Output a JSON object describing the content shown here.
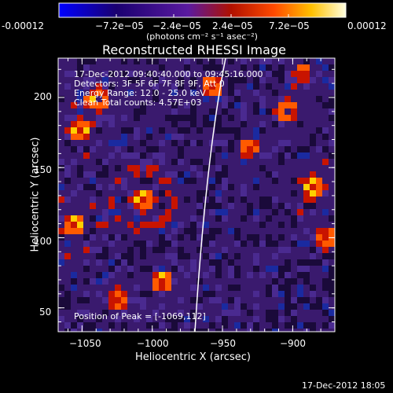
{
  "colorbar": {
    "tick_labels": [
      "-0.00012",
      "−7.2e−05",
      "−2.4e−05",
      "2.4e−05",
      "7.2e−05",
      "0.00012"
    ],
    "units_label": "(photons cm⁻² s⁻¹ asec⁻²)",
    "colors": [
      "#0000ff",
      "#1a0070",
      "#5a1aa0",
      "#b01000",
      "#ff4a00",
      "#ffc000",
      "#ffffe0"
    ]
  },
  "image": {
    "title": "Reconstructed RHESSI Image",
    "info_lines": [
      "17-Dec-2012 09:40:40.000 to 09:45:16.000",
      "Detectors: 3F 5F 6F 7F 8F 9F, Att 0",
      "Energy Range: 12.0 - 25.0 keV",
      "Clean     Total counts: 4.57E+03"
    ],
    "peak_label": "Position of Peak = [-1069,112]",
    "x_axis": {
      "label": "Heliocentric X (arcsec)",
      "range": [
        -1067,
        -870
      ],
      "ticks": [
        -1050,
        -1000,
        -950,
        -900
      ],
      "tick_labels": [
        "−1050",
        "−1000",
        "−950",
        "−900"
      ]
    },
    "y_axis": {
      "label": "Heliocentric Y (arcsec)",
      "range": [
        33,
        228
      ],
      "ticks": [
        50,
        100,
        150,
        200
      ],
      "tick_labels": [
        "50",
        "100",
        "150",
        "200"
      ]
    },
    "palette": {
      "background": "#3a1a6e",
      "dark": "#1a0a3a",
      "red": "#c81400",
      "orange": "#ff5a00",
      "yellow": "#ffd000"
    }
  },
  "footer": {
    "timestamp": "17-Dec-2012 18:05"
  }
}
